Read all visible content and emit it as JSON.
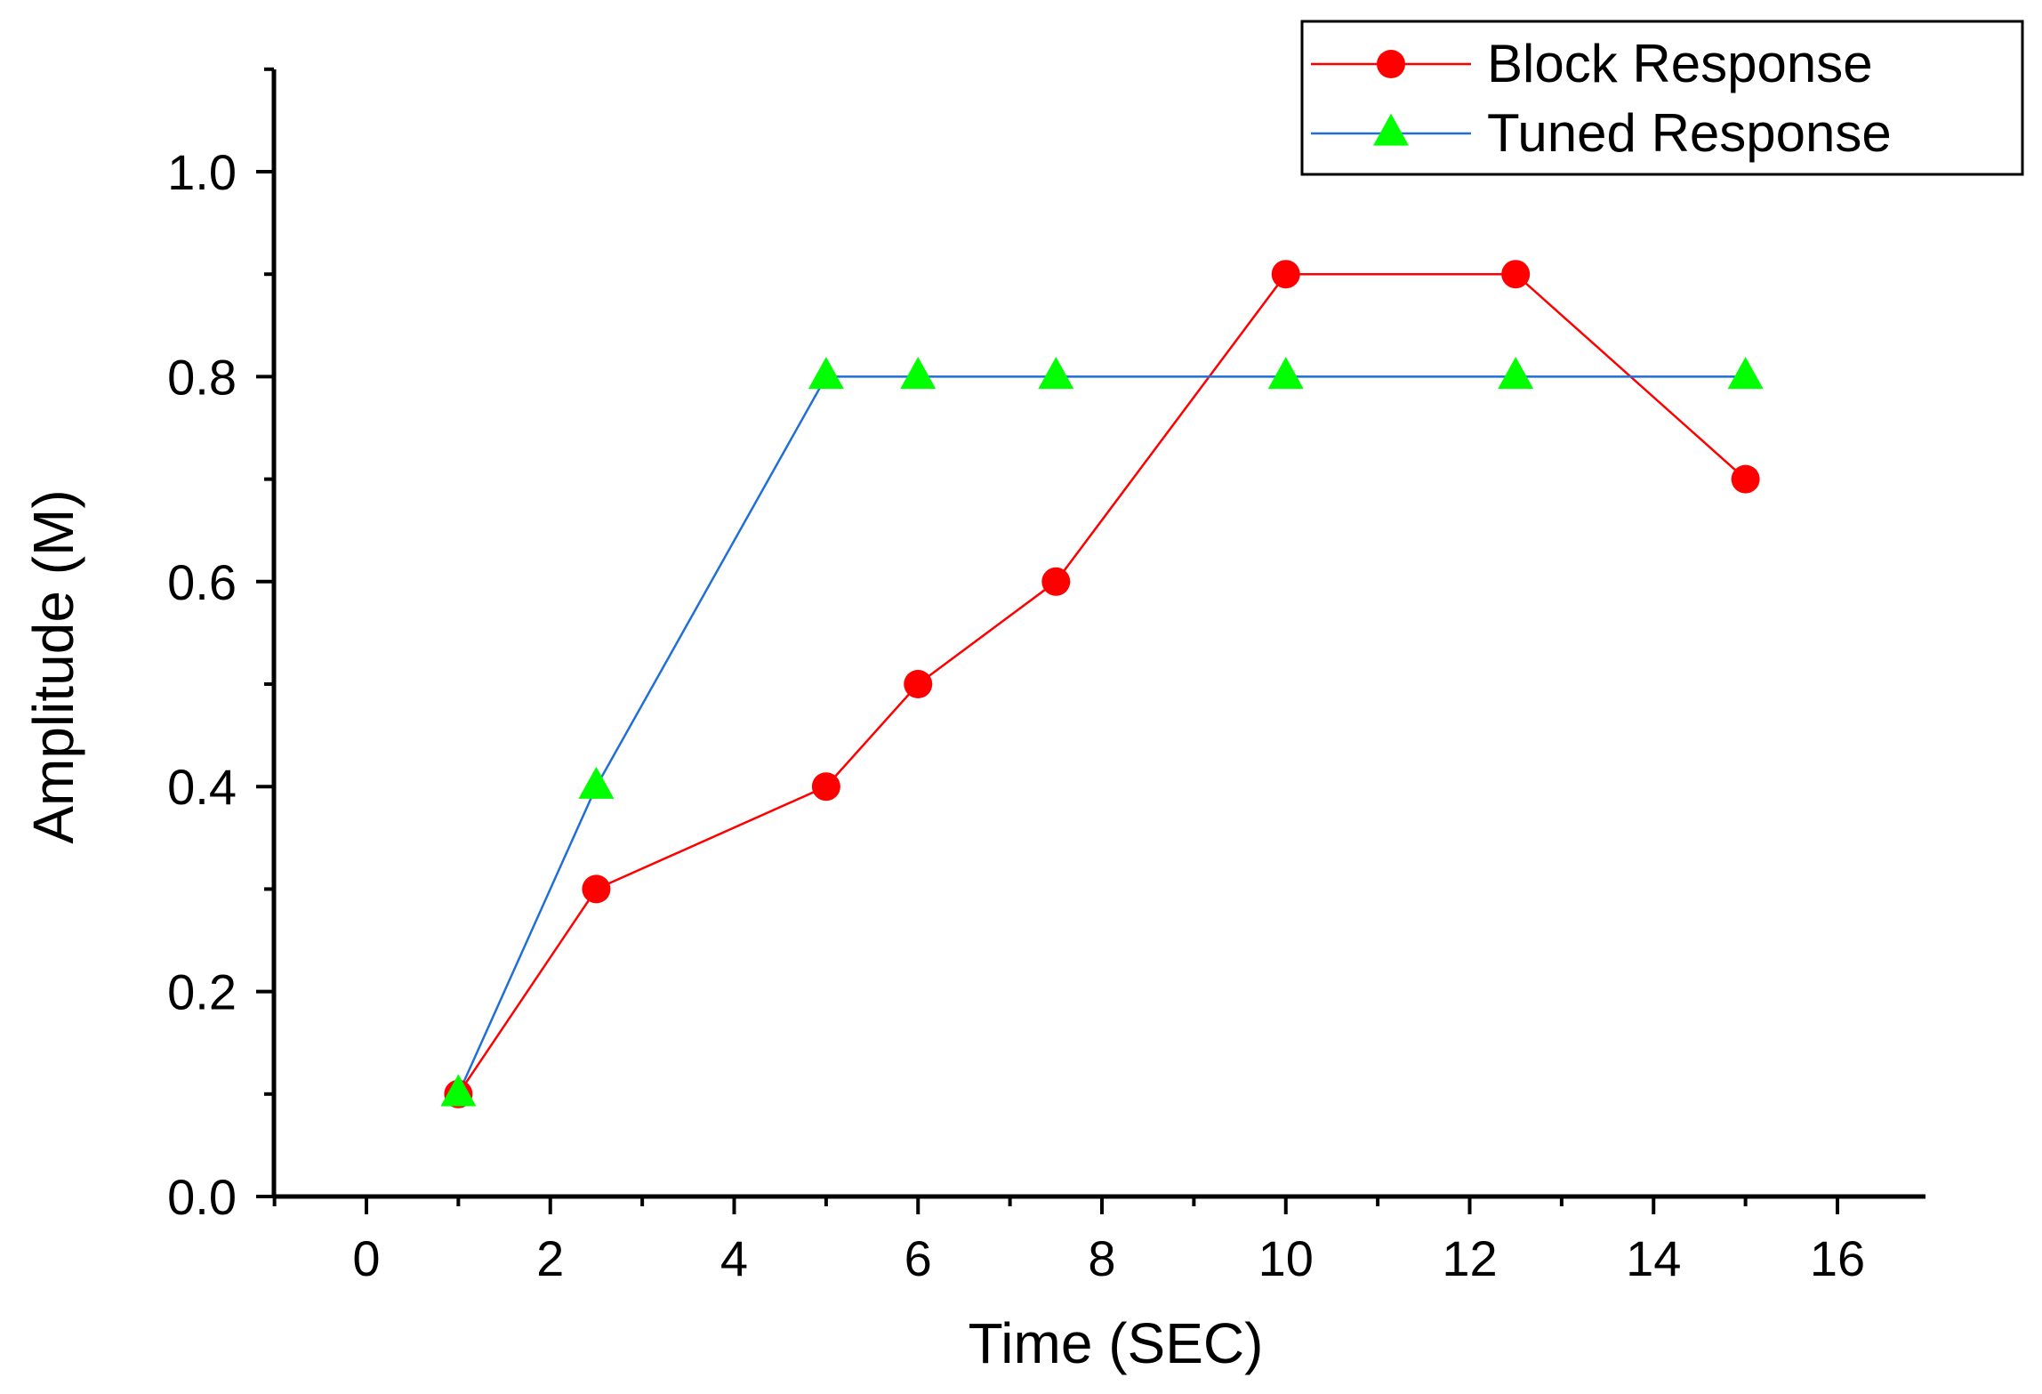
{
  "chart_data": {
    "type": "line",
    "title": "",
    "xlabel": "Time (SEC)",
    "ylabel": "Amplitude (M)",
    "xlim": [
      -1,
      17
    ],
    "ylim": [
      0,
      1.1
    ],
    "x_ticks": [
      0,
      2,
      4,
      6,
      8,
      10,
      12,
      14,
      16
    ],
    "x_tick_labels": [
      "0",
      "2",
      "4",
      "6",
      "8",
      "10",
      "12",
      "14",
      "16"
    ],
    "y_ticks": [
      0.0,
      0.2,
      0.4,
      0.6,
      0.8,
      1.0
    ],
    "y_tick_labels": [
      "0.0",
      "0.2",
      "0.4",
      "0.6",
      "0.8",
      "1.0"
    ],
    "grid": false,
    "legend_position": "top-right",
    "series": [
      {
        "name": "Block Response",
        "color": "#ff0000",
        "marker": "circle",
        "x": [
          1,
          2.5,
          5,
          6,
          7.5,
          10,
          12.5,
          15
        ],
        "y": [
          0.1,
          0.3,
          0.4,
          0.5,
          0.6,
          0.9,
          0.9,
          0.7
        ]
      },
      {
        "name": "Tuned Response",
        "line_color": "#1f6fd6",
        "color": "#00ff00",
        "marker": "triangle",
        "x": [
          1,
          2.5,
          5,
          6,
          7.5,
          10,
          12.5,
          15
        ],
        "y": [
          0.1,
          0.4,
          0.8,
          0.8,
          0.8,
          0.8,
          0.8,
          0.8
        ]
      }
    ]
  }
}
